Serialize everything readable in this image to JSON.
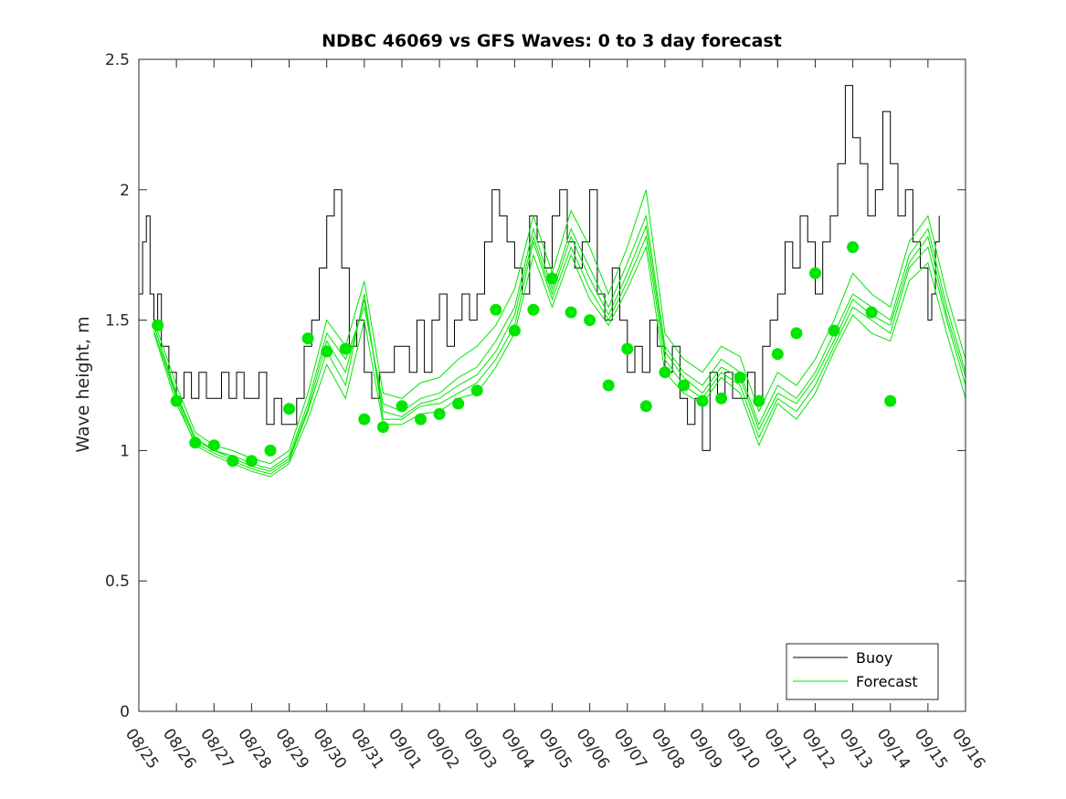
{
  "chart_data": {
    "type": "line",
    "title": "NDBC 46069 vs GFS Waves: 0 to 3 day forecast",
    "xlabel": "",
    "ylabel": "Wave height, m",
    "x_domain_days": [
      0,
      22
    ],
    "ylim": [
      0,
      2.5
    ],
    "y_ticks": [
      0,
      0.5,
      1,
      1.5,
      2,
      2.5
    ],
    "y_tick_labels": [
      "0",
      "0.5",
      "1",
      "1.5",
      "2",
      "2.5"
    ],
    "x_tick_labels": [
      "08/25",
      "08/26",
      "08/27",
      "08/28",
      "08/29",
      "08/30",
      "08/31",
      "09/01",
      "09/02",
      "09/03",
      "09/04",
      "09/05",
      "09/06",
      "09/07",
      "09/08",
      "09/09",
      "09/10",
      "09/11",
      "09/12",
      "09/13",
      "09/14",
      "09/15",
      "09/16"
    ],
    "grid": false,
    "legend": {
      "position": "bottom-right",
      "entries": [
        {
          "label": "Buoy",
          "color": "#000000"
        },
        {
          "label": "Forecast",
          "color": "#00e600"
        }
      ]
    },
    "colors": {
      "buoy": "#000000",
      "forecast": "#00e600",
      "axis": "#262626"
    },
    "buoy_series": {
      "name": "Buoy",
      "days": [
        0,
        0.1,
        0.2,
        0.3,
        0.4,
        0.5,
        0.6,
        0.8,
        1.0,
        1.2,
        1.4,
        1.6,
        1.8,
        2.0,
        2.2,
        2.4,
        2.6,
        2.8,
        3.0,
        3.2,
        3.4,
        3.6,
        3.8,
        4.0,
        4.2,
        4.4,
        4.6,
        4.8,
        5.0,
        5.2,
        5.4,
        5.6,
        5.8,
        6.0,
        6.2,
        6.4,
        6.6,
        6.8,
        7.0,
        7.2,
        7.4,
        7.6,
        7.8,
        8.0,
        8.2,
        8.4,
        8.6,
        8.8,
        9.0,
        9.2,
        9.4,
        9.6,
        9.8,
        10.0,
        10.2,
        10.4,
        10.6,
        10.8,
        11.0,
        11.2,
        11.4,
        11.6,
        11.8,
        12.0,
        12.2,
        12.4,
        12.6,
        12.8,
        13.0,
        13.2,
        13.4,
        13.6,
        13.8,
        14.0,
        14.2,
        14.4,
        14.6,
        14.8,
        15.0,
        15.2,
        15.4,
        15.6,
        15.8,
        16.0,
        16.2,
        16.4,
        16.6,
        16.8,
        17.0,
        17.2,
        17.4,
        17.6,
        17.8,
        18.0,
        18.2,
        18.4,
        18.6,
        18.8,
        19.0,
        19.2,
        19.4,
        19.6,
        19.8,
        20.0,
        20.2,
        20.4,
        20.6,
        20.8,
        21.0,
        21.1,
        21.2,
        21.3
      ],
      "values": [
        1.6,
        1.8,
        1.9,
        1.6,
        1.5,
        1.6,
        1.4,
        1.3,
        1.2,
        1.3,
        1.2,
        1.3,
        1.2,
        1.2,
        1.3,
        1.2,
        1.3,
        1.2,
        1.2,
        1.3,
        1.1,
        1.2,
        1.1,
        1.1,
        1.2,
        1.4,
        1.5,
        1.7,
        1.9,
        2.0,
        1.7,
        1.4,
        1.5,
        1.3,
        1.2,
        1.3,
        1.3,
        1.4,
        1.4,
        1.3,
        1.5,
        1.3,
        1.5,
        1.6,
        1.4,
        1.5,
        1.6,
        1.5,
        1.6,
        1.8,
        2.0,
        1.9,
        1.8,
        1.7,
        1.6,
        1.9,
        1.8,
        1.7,
        1.9,
        2.0,
        1.8,
        1.7,
        1.8,
        2.0,
        1.6,
        1.5,
        1.7,
        1.5,
        1.3,
        1.4,
        1.3,
        1.5,
        1.4,
        1.3,
        1.4,
        1.2,
        1.1,
        1.2,
        1.0,
        1.3,
        1.2,
        1.3,
        1.2,
        1.2,
        1.3,
        1.2,
        1.4,
        1.5,
        1.6,
        1.8,
        1.7,
        1.9,
        1.8,
        1.6,
        1.8,
        1.9,
        2.1,
        2.4,
        2.2,
        2.1,
        1.9,
        2.0,
        2.3,
        2.1,
        1.9,
        2.0,
        1.8,
        1.7,
        1.5,
        1.6,
        1.8,
        1.9
      ]
    },
    "forecast_series": [
      {
        "name": "Forecast run 1",
        "days": [
          0.4,
          1.0,
          1.5,
          2.0,
          2.5,
          3.0,
          3.5,
          4.0,
          4.5,
          5.0,
          5.5,
          6.0,
          6.5,
          7.0,
          7.5,
          8.0,
          8.5,
          9.0,
          9.5,
          10.0,
          10.5,
          11.0,
          11.5,
          12.0,
          12.5,
          13.0,
          13.5,
          14.0,
          14.5,
          15.0,
          15.5,
          16.0,
          16.5,
          17.0,
          17.5,
          18.0,
          18.5,
          19.0,
          19.5,
          20.0,
          20.5,
          21.0,
          21.5,
          22.0
        ],
        "values": [
          1.48,
          1.22,
          1.05,
          1.0,
          0.98,
          0.95,
          0.93,
          0.98,
          1.18,
          1.45,
          1.35,
          1.55,
          1.18,
          1.15,
          1.2,
          1.22,
          1.28,
          1.32,
          1.42,
          1.55,
          1.85,
          1.62,
          1.85,
          1.7,
          1.55,
          1.72,
          1.9,
          1.4,
          1.3,
          1.25,
          1.35,
          1.3,
          1.1,
          1.25,
          1.2,
          1.3,
          1.45,
          1.6,
          1.55,
          1.5,
          1.75,
          1.85,
          1.55,
          1.3
        ]
      },
      {
        "name": "Forecast run 2",
        "days": [
          0.4,
          1.0,
          1.5,
          2.0,
          2.5,
          3.0,
          3.5,
          4.0,
          4.5,
          5.0,
          5.5,
          6.0,
          6.5,
          7.0,
          7.5,
          8.0,
          8.5,
          9.0,
          9.5,
          10.0,
          10.5,
          11.0,
          11.5,
          12.0,
          12.5,
          13.0,
          13.5,
          14.0,
          14.5,
          15.0,
          15.5,
          16.0,
          16.5,
          17.0,
          17.5,
          18.0,
          18.5,
          19.0,
          19.5,
          20.0,
          20.5,
          21.0,
          21.5,
          22.0
        ],
        "values": [
          1.45,
          1.18,
          1.03,
          0.99,
          0.96,
          0.93,
          0.91,
          0.96,
          1.15,
          1.38,
          1.25,
          1.6,
          1.12,
          1.12,
          1.17,
          1.18,
          1.22,
          1.26,
          1.35,
          1.48,
          1.8,
          1.58,
          1.78,
          1.62,
          1.5,
          1.65,
          1.82,
          1.35,
          1.25,
          1.2,
          1.3,
          1.25,
          1.05,
          1.2,
          1.15,
          1.25,
          1.4,
          1.55,
          1.5,
          1.45,
          1.7,
          1.78,
          1.5,
          1.25
        ]
      },
      {
        "name": "Forecast run 3",
        "days": [
          0.4,
          1.0,
          1.5,
          2.0,
          2.5,
          3.0,
          3.5,
          4.0,
          4.5,
          5.0,
          5.5,
          6.0,
          6.5,
          7.0,
          7.5,
          8.0,
          8.5,
          9.0,
          9.5,
          10.0,
          10.5,
          11.0,
          11.5,
          12.0,
          12.5,
          13.0,
          13.5,
          14.0,
          14.5,
          15.0,
          15.5,
          16.0,
          16.5,
          17.0,
          17.5,
          18.0,
          18.5,
          19.0,
          19.5,
          20.0,
          20.5,
          21.0,
          21.5,
          22.0
        ],
        "values": [
          1.5,
          1.25,
          1.07,
          1.02,
          1.0,
          0.97,
          0.95,
          1.0,
          1.22,
          1.5,
          1.4,
          1.65,
          1.22,
          1.2,
          1.26,
          1.28,
          1.35,
          1.4,
          1.48,
          1.62,
          1.9,
          1.68,
          1.92,
          1.78,
          1.6,
          1.78,
          2.0,
          1.45,
          1.35,
          1.3,
          1.4,
          1.36,
          1.15,
          1.3,
          1.25,
          1.35,
          1.5,
          1.68,
          1.6,
          1.55,
          1.8,
          1.9,
          1.6,
          1.35
        ]
      },
      {
        "name": "Forecast run 4",
        "days": [
          0.4,
          1.0,
          1.5,
          2.0,
          2.5,
          3.0,
          3.5,
          4.0,
          4.5,
          5.0,
          5.5,
          6.0,
          6.5,
          7.0,
          7.5,
          8.0,
          8.5,
          9.0,
          9.5,
          10.0,
          10.5,
          11.0,
          11.5,
          12.0,
          12.5,
          13.0,
          13.5,
          14.0,
          14.5,
          15.0,
          15.5,
          16.0,
          16.5,
          17.0,
          17.5,
          18.0,
          18.5,
          19.0,
          19.5,
          20.0,
          20.5,
          21.0,
          21.5,
          22.0
        ],
        "values": [
          1.46,
          1.2,
          1.02,
          0.98,
          0.95,
          0.92,
          0.9,
          0.95,
          1.12,
          1.33,
          1.2,
          1.5,
          1.1,
          1.1,
          1.14,
          1.15,
          1.2,
          1.22,
          1.32,
          1.45,
          1.75,
          1.55,
          1.75,
          1.58,
          1.48,
          1.62,
          1.78,
          1.3,
          1.22,
          1.18,
          1.28,
          1.22,
          1.02,
          1.18,
          1.12,
          1.22,
          1.38,
          1.52,
          1.45,
          1.42,
          1.65,
          1.72,
          1.45,
          1.2
        ]
      },
      {
        "name": "Forecast run 5",
        "days": [
          0.4,
          1.0,
          1.5,
          2.0,
          2.5,
          3.0,
          3.5,
          4.0,
          4.5,
          5.0,
          5.5,
          6.0,
          6.5,
          7.0,
          7.5,
          8.0,
          8.5,
          9.0,
          9.5,
          10.0,
          10.5,
          11.0,
          11.5,
          12.0,
          12.5,
          13.0,
          13.5,
          14.0,
          14.5,
          15.0,
          15.5,
          16.0,
          16.5,
          17.0,
          17.5,
          18.0,
          18.5,
          19.0,
          19.5,
          20.0,
          20.5,
          21.0,
          21.5,
          22.0
        ],
        "values": [
          1.48,
          1.21,
          1.04,
          1.0,
          0.97,
          0.94,
          0.92,
          0.97,
          1.16,
          1.42,
          1.3,
          1.58,
          1.15,
          1.13,
          1.18,
          1.2,
          1.25,
          1.29,
          1.38,
          1.52,
          1.82,
          1.6,
          1.82,
          1.66,
          1.52,
          1.68,
          1.86,
          1.38,
          1.28,
          1.22,
          1.32,
          1.28,
          1.08,
          1.22,
          1.18,
          1.28,
          1.42,
          1.58,
          1.52,
          1.48,
          1.72,
          1.82,
          1.52,
          1.28
        ]
      }
    ],
    "forecast_markers": {
      "days": [
        0.5,
        1.0,
        1.5,
        2.0,
        2.5,
        3.0,
        3.5,
        4.0,
        4.5,
        5.0,
        5.5,
        6.0,
        6.5,
        7.0,
        7.5,
        8.0,
        8.5,
        9.0,
        9.5,
        10.0,
        10.5,
        11.0,
        11.5,
        12.0,
        12.5,
        13.0,
        13.5,
        14.0,
        14.5,
        15.0,
        15.5,
        16.0,
        16.5,
        17.0,
        17.5,
        18.0,
        18.5,
        19.0,
        19.5,
        20.0,
        20.5,
        21.0
      ],
      "values": [
        1.48,
        1.19,
        1.03,
        1.02,
        0.96,
        0.96,
        1.0,
        1.16,
        1.43,
        1.38,
        1.39,
        1.12,
        1.09,
        1.17,
        1.12,
        1.14,
        1.18,
        1.23,
        1.54,
        1.46,
        1.54,
        1.66,
        1.53,
        1.5,
        1.25,
        1.39,
        1.17,
        1.3,
        1.25,
        1.19,
        1.2,
        1.28,
        1.19,
        1.37,
        1.45,
        1.68,
        1.46,
        1.78,
        1.53,
        1.19,
        null,
        null
      ]
    }
  }
}
